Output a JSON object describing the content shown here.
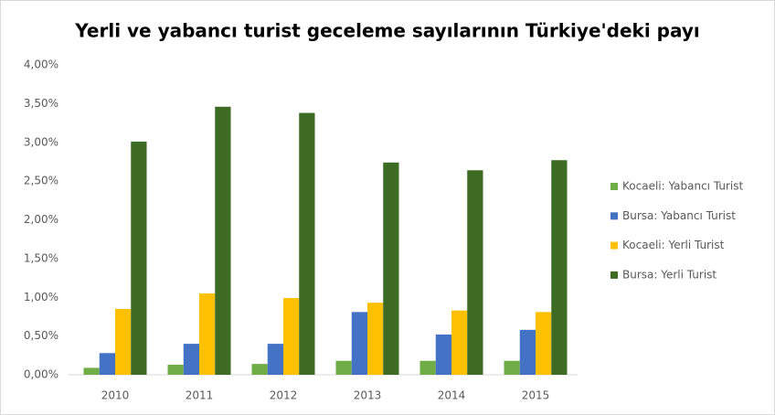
{
  "chart_data": {
    "type": "bar",
    "title": "Yerli ve yabancı turist geceleme sayılarının Türkiye'deki payı",
    "categories": [
      "2010",
      "2011",
      "2012",
      "2013",
      "2014",
      "2015"
    ],
    "series": [
      {
        "name": "Kocaeli: Yabancı Turist",
        "color": "#70ad47",
        "values": [
          0.09,
          0.13,
          0.14,
          0.18,
          0.18,
          0.18
        ]
      },
      {
        "name": "Bursa: Yabancı Turist",
        "color": "#4472c4",
        "values": [
          0.28,
          0.4,
          0.4,
          0.81,
          0.52,
          0.58
        ]
      },
      {
        "name": "Kocaeli: Yerli Turist",
        "color": "#ffc000",
        "values": [
          0.85,
          1.05,
          0.99,
          0.93,
          0.83,
          0.81
        ]
      },
      {
        "name": "Bursa: Yerli Turist",
        "color": "#3d6b24",
        "values": [
          3.01,
          3.46,
          3.38,
          2.74,
          2.64,
          2.77
        ]
      }
    ],
    "ylim": [
      0,
      4
    ],
    "yticks": [
      {
        "value": 0,
        "label": "0,00%"
      },
      {
        "value": 0.5,
        "label": "0,50%"
      },
      {
        "value": 1,
        "label": "1,00%"
      },
      {
        "value": 1.5,
        "label": "1,50%"
      },
      {
        "value": 2,
        "label": "2,00%"
      },
      {
        "value": 2.5,
        "label": "2,50%"
      },
      {
        "value": 3,
        "label": "3,00%"
      },
      {
        "value": 3.5,
        "label": "3,50%"
      },
      {
        "value": 4,
        "label": "4,00%"
      }
    ],
    "grid": false,
    "legend": "right"
  }
}
